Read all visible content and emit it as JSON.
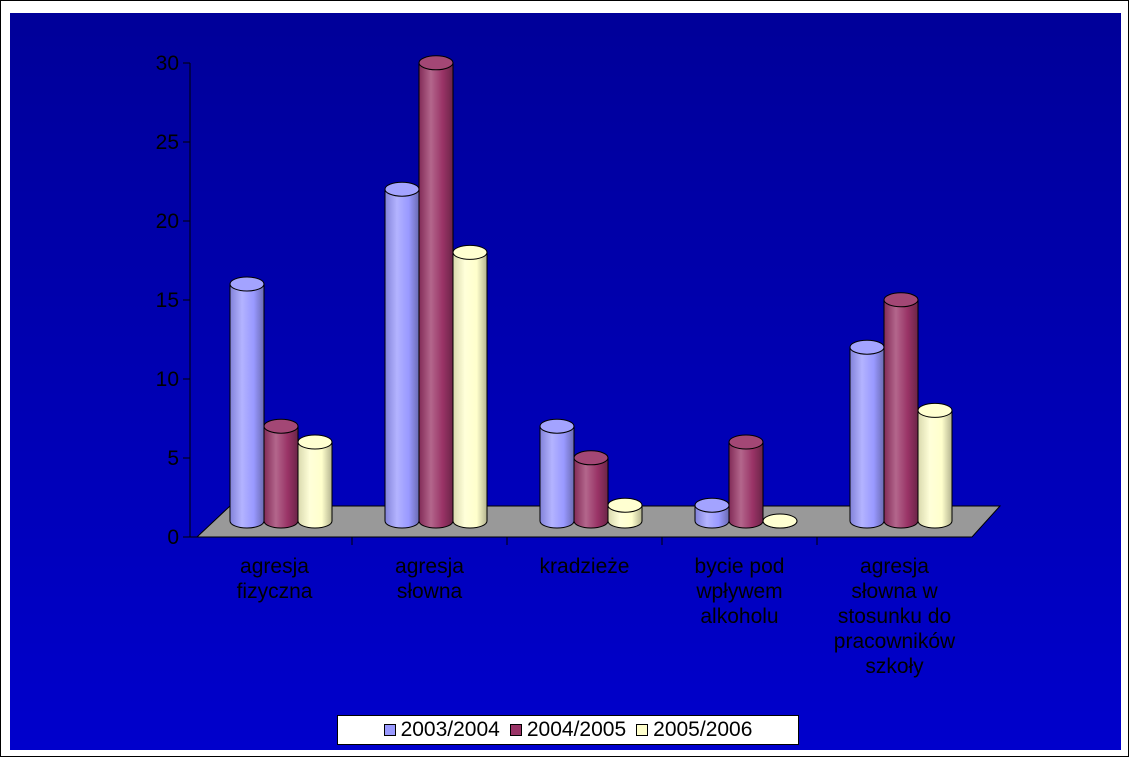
{
  "chart_data": {
    "type": "bar",
    "style": "3d-cylinder",
    "categories": [
      "agresja\nfizyczna",
      "agresja\nsłowna",
      "kradzieże",
      "bycie pod\nwpływem\nalkoholu",
      "agresja\nsłowna w\nstosunku do\npracowników\nszkoły"
    ],
    "series": [
      {
        "name": "2003/2004",
        "color": "#9999ff",
        "values": [
          15,
          21,
          6,
          1,
          11
        ]
      },
      {
        "name": "2004/2005",
        "color": "#993366",
        "values": [
          6,
          29,
          4,
          5,
          14
        ]
      },
      {
        "name": "2005/2006",
        "color": "#ffffcc",
        "values": [
          5,
          17,
          1,
          0,
          7
        ]
      }
    ],
    "yticks": [
      "0",
      "5",
      "10",
      "15",
      "20",
      "25",
      "30"
    ],
    "ylim": [
      0,
      30
    ],
    "legend_position": "bottom",
    "grid": false,
    "background": {
      "top": "#000099",
      "bottom": "#0000cc"
    },
    "floor_color": "#999999"
  }
}
